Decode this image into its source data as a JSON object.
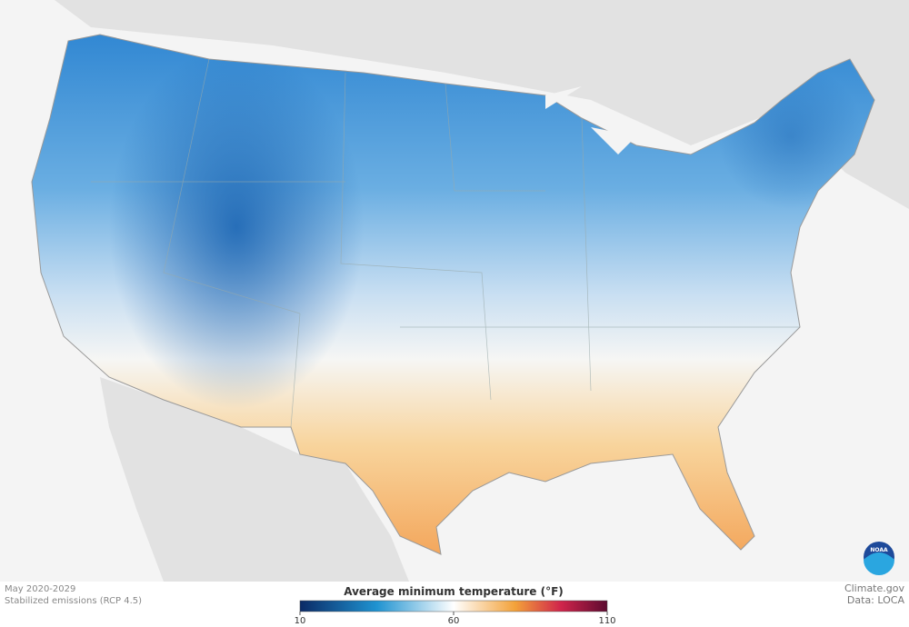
{
  "map": {
    "period": "May 2020-2029",
    "scenario": "Stabilized emissions (RCP 4.5)"
  },
  "legend": {
    "title": "Average minimum temperature (°F)",
    "range": [
      10,
      110
    ],
    "ticks": [
      10,
      60,
      110
    ]
  },
  "credits": {
    "source": "Climate.gov",
    "data": "Data: LOCA",
    "logo": "NOAA"
  }
}
